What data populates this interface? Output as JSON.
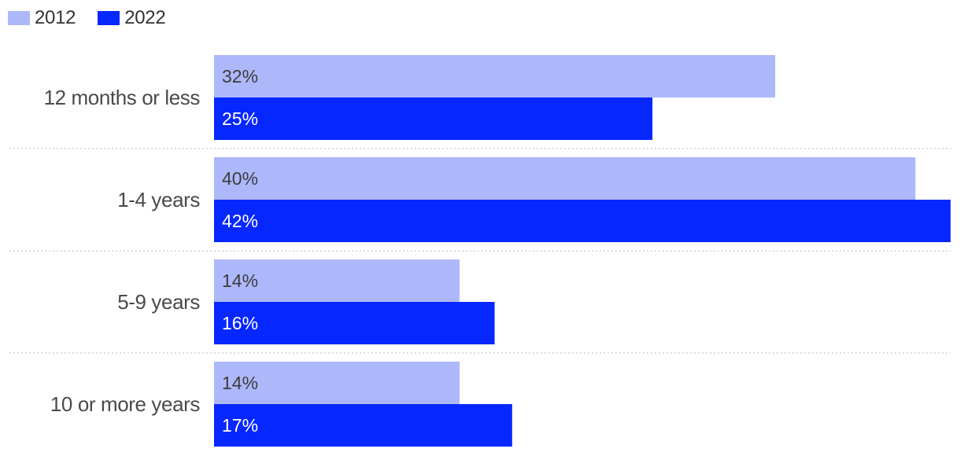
{
  "colors": {
    "2012": "#adb8fb",
    "2022": "#0727ff",
    "label_dark": "#3c3c3c",
    "label_light": "#ffffff",
    "divider": "#c8c8c8"
  },
  "chart_data": {
    "type": "bar",
    "orientation": "horizontal",
    "categories": [
      "12 months or less",
      "1-4 years",
      "5-9 years",
      "10 or more years"
    ],
    "series": [
      {
        "name": "2012",
        "values": [
          32,
          40,
          14,
          14
        ],
        "labels": [
          "32%",
          "40%",
          "14%",
          "14%"
        ]
      },
      {
        "name": "2022",
        "values": [
          25,
          42,
          16,
          17
        ],
        "labels": [
          "25%",
          "42%",
          "16%",
          "17%"
        ]
      }
    ],
    "xlim": [
      0,
      42
    ],
    "legend": "top-left",
    "grid": false
  }
}
